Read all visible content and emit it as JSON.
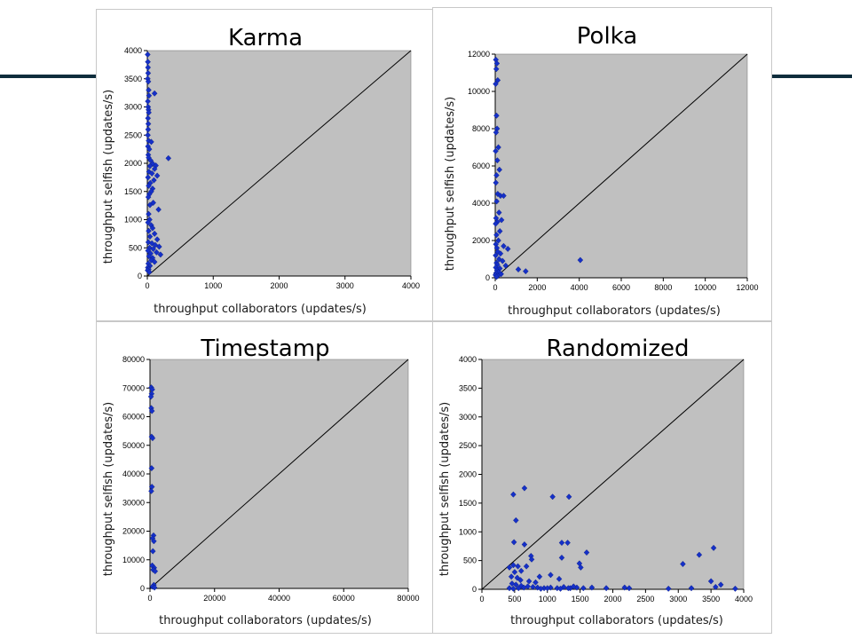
{
  "slide": {
    "rule_color": "#0f2d3c"
  },
  "colors": {
    "plot_bg": "#c0c0c0",
    "marker": "#1530c8",
    "diagonal": "#000000"
  },
  "chart_data": [
    {
      "type": "scatter",
      "title": "Karma",
      "xlabel": "throughput collaborators (updates/s)",
      "ylabel": "throughput selfish  (updates/s)",
      "xlim": [
        0,
        4000
      ],
      "ylim": [
        0,
        4000
      ],
      "xticks": [
        0,
        1000,
        2000,
        3000,
        4000
      ],
      "yticks": [
        0,
        500,
        1000,
        1500,
        2000,
        2500,
        3000,
        3500,
        4000
      ],
      "reference_line": "y = x",
      "points": [
        [
          5,
          3930
        ],
        [
          8,
          3800
        ],
        [
          10,
          3700
        ],
        [
          12,
          3600
        ],
        [
          6,
          3500
        ],
        [
          15,
          3450
        ],
        [
          20,
          3300
        ],
        [
          110,
          3240
        ],
        [
          25,
          3200
        ],
        [
          8,
          3100
        ],
        [
          12,
          3000
        ],
        [
          18,
          2950
        ],
        [
          22,
          2900
        ],
        [
          10,
          2800
        ],
        [
          15,
          2700
        ],
        [
          12,
          2600
        ],
        [
          8,
          2500
        ],
        [
          20,
          2400
        ],
        [
          60,
          2380
        ],
        [
          10,
          2300
        ],
        [
          30,
          2250
        ],
        [
          15,
          2150
        ],
        [
          20,
          2100
        ],
        [
          320,
          2090
        ],
        [
          50,
          2050
        ],
        [
          85,
          1990
        ],
        [
          130,
          1960
        ],
        [
          40,
          1950
        ],
        [
          110,
          1900
        ],
        [
          25,
          1850
        ],
        [
          70,
          1820
        ],
        [
          150,
          1780
        ],
        [
          10,
          1750
        ],
        [
          100,
          1700
        ],
        [
          45,
          1650
        ],
        [
          20,
          1600
        ],
        [
          80,
          1550
        ],
        [
          60,
          1500
        ],
        [
          30,
          1450
        ],
        [
          15,
          1400
        ],
        [
          90,
          1300
        ],
        [
          40,
          1260
        ],
        [
          170,
          1180
        ],
        [
          20,
          1100
        ],
        [
          35,
          1000
        ],
        [
          10,
          950
        ],
        [
          60,
          900
        ],
        [
          80,
          850
        ],
        [
          20,
          800
        ],
        [
          110,
          750
        ],
        [
          40,
          700
        ],
        [
          150,
          650
        ],
        [
          15,
          600
        ],
        [
          70,
          580
        ],
        [
          120,
          550
        ],
        [
          180,
          520
        ],
        [
          35,
          500
        ],
        [
          90,
          480
        ],
        [
          10,
          450
        ],
        [
          140,
          420
        ],
        [
          50,
          400
        ],
        [
          200,
          380
        ],
        [
          25,
          350
        ],
        [
          80,
          320
        ],
        [
          60,
          280
        ],
        [
          110,
          250
        ],
        [
          15,
          220
        ],
        [
          40,
          180
        ],
        [
          8,
          150
        ],
        [
          20,
          120
        ],
        [
          5,
          100
        ],
        [
          30,
          70
        ]
      ]
    },
    {
      "type": "scatter",
      "title": "Polka",
      "xlabel": "throughput collaborators (updates/s)",
      "ylabel": "throughput selfish  (updates/s)",
      "xlim": [
        0,
        12000
      ],
      "ylim": [
        0,
        12000
      ],
      "xticks": [
        0,
        2000,
        4000,
        6000,
        8000,
        10000,
        12000
      ],
      "yticks": [
        0,
        2000,
        4000,
        6000,
        8000,
        10000,
        12000
      ],
      "reference_line": "y = x",
      "points": [
        [
          30,
          11700
        ],
        [
          80,
          11500
        ],
        [
          50,
          11200
        ],
        [
          120,
          10600
        ],
        [
          20,
          10400
        ],
        [
          60,
          8700
        ],
        [
          90,
          8000
        ],
        [
          40,
          7800
        ],
        [
          150,
          7000
        ],
        [
          20,
          6800
        ],
        [
          100,
          6300
        ],
        [
          200,
          5800
        ],
        [
          60,
          5500
        ],
        [
          30,
          5100
        ],
        [
          120,
          4500
        ],
        [
          250,
          4400
        ],
        [
          400,
          4400
        ],
        [
          70,
          4100
        ],
        [
          180,
          3500
        ],
        [
          40,
          3200
        ],
        [
          300,
          3100
        ],
        [
          100,
          3000
        ],
        [
          20,
          2900
        ],
        [
          220,
          2500
        ],
        [
          60,
          2300
        ],
        [
          150,
          2000
        ],
        [
          30,
          1800
        ],
        [
          400,
          1700
        ],
        [
          80,
          1600
        ],
        [
          600,
          1550
        ],
        [
          120,
          1400
        ],
        [
          250,
          1300
        ],
        [
          20,
          1200
        ],
        [
          180,
          1000
        ],
        [
          350,
          900
        ],
        [
          60,
          800
        ],
        [
          100,
          700
        ],
        [
          500,
          650
        ],
        [
          30,
          550
        ],
        [
          220,
          500
        ],
        [
          1100,
          450
        ],
        [
          1450,
          350
        ],
        [
          4050,
          950
        ],
        [
          80,
          400
        ],
        [
          150,
          300
        ],
        [
          40,
          250
        ],
        [
          280,
          200
        ],
        [
          10,
          150
        ],
        [
          120,
          100
        ],
        [
          60,
          50
        ]
      ]
    },
    {
      "type": "scatter",
      "title": "Timestamp",
      "xlabel": "throughput collaborators (updates/s)",
      "ylabel": "throughput selfish  (updates/s)",
      "xlim": [
        0,
        80000
      ],
      "ylim": [
        0,
        80000
      ],
      "xticks": [
        0,
        20000,
        40000,
        60000,
        80000
      ],
      "yticks": [
        0,
        10000,
        20000,
        30000,
        40000,
        50000,
        60000,
        70000,
        80000
      ],
      "reference_line": "y = x",
      "points": [
        [
          400,
          70200
        ],
        [
          700,
          69500
        ],
        [
          500,
          68000
        ],
        [
          300,
          67000
        ],
        [
          400,
          63000
        ],
        [
          600,
          62000
        ],
        [
          500,
          53000
        ],
        [
          800,
          52500
        ],
        [
          500,
          42000
        ],
        [
          600,
          35500
        ],
        [
          400,
          34000
        ],
        [
          1100,
          18500
        ],
        [
          800,
          17500
        ],
        [
          1200,
          16500
        ],
        [
          900,
          13000
        ],
        [
          700,
          8000
        ],
        [
          1300,
          7200
        ],
        [
          1000,
          6500
        ],
        [
          1600,
          6000
        ],
        [
          1200,
          1200
        ],
        [
          800,
          600
        ],
        [
          1400,
          300
        ]
      ]
    },
    {
      "type": "scatter",
      "title": "Randomized",
      "xlabel": "throughput collaborators (updates/s)",
      "ylabel": "throughput selfish  (updates/s)",
      "xlim": [
        0,
        4000
      ],
      "ylim": [
        0,
        4000
      ],
      "xticks": [
        0,
        500,
        1000,
        1500,
        2000,
        2500,
        3000,
        3500,
        4000
      ],
      "yticks": [
        0,
        500,
        1000,
        1500,
        2000,
        2500,
        3000,
        3500,
        4000
      ],
      "reference_line": "y = x",
      "points": [
        [
          650,
          1760
        ],
        [
          480,
          1650
        ],
        [
          1080,
          1610
        ],
        [
          1330,
          1610
        ],
        [
          520,
          1200
        ],
        [
          490,
          820
        ],
        [
          1220,
          810
        ],
        [
          1310,
          810
        ],
        [
          3540,
          720
        ],
        [
          650,
          780
        ],
        [
          1600,
          640
        ],
        [
          3320,
          600
        ],
        [
          750,
          580
        ],
        [
          1220,
          550
        ],
        [
          760,
          520
        ],
        [
          1490,
          450
        ],
        [
          1510,
          380
        ],
        [
          3070,
          440
        ],
        [
          480,
          420
        ],
        [
          550,
          400
        ],
        [
          420,
          380
        ],
        [
          680,
          400
        ],
        [
          1050,
          250
        ],
        [
          600,
          320
        ],
        [
          500,
          300
        ],
        [
          880,
          220
        ],
        [
          450,
          220
        ],
        [
          540,
          200
        ],
        [
          1180,
          180
        ],
        [
          590,
          160
        ],
        [
          720,
          140
        ],
        [
          820,
          120
        ],
        [
          460,
          100
        ],
        [
          520,
          80
        ],
        [
          600,
          60
        ],
        [
          700,
          50
        ],
        [
          780,
          40
        ],
        [
          850,
          30
        ],
        [
          950,
          20
        ],
        [
          1050,
          30
        ],
        [
          1150,
          20
        ],
        [
          1250,
          40
        ],
        [
          1350,
          20
        ],
        [
          1450,
          30
        ],
        [
          1550,
          20
        ],
        [
          1680,
          30
        ],
        [
          1900,
          20
        ],
        [
          2180,
          30
        ],
        [
          2850,
          10
        ],
        [
          3200,
          20
        ],
        [
          3500,
          140
        ],
        [
          3570,
          40
        ],
        [
          3650,
          80
        ],
        [
          3870,
          10
        ],
        [
          420,
          20
        ],
        [
          480,
          10
        ],
        [
          560,
          20
        ],
        [
          640,
          30
        ],
        [
          900,
          10
        ],
        [
          1000,
          20
        ],
        [
          1200,
          10
        ],
        [
          1320,
          20
        ],
        [
          1400,
          50
        ],
        [
          2250,
          20
        ]
      ]
    }
  ]
}
